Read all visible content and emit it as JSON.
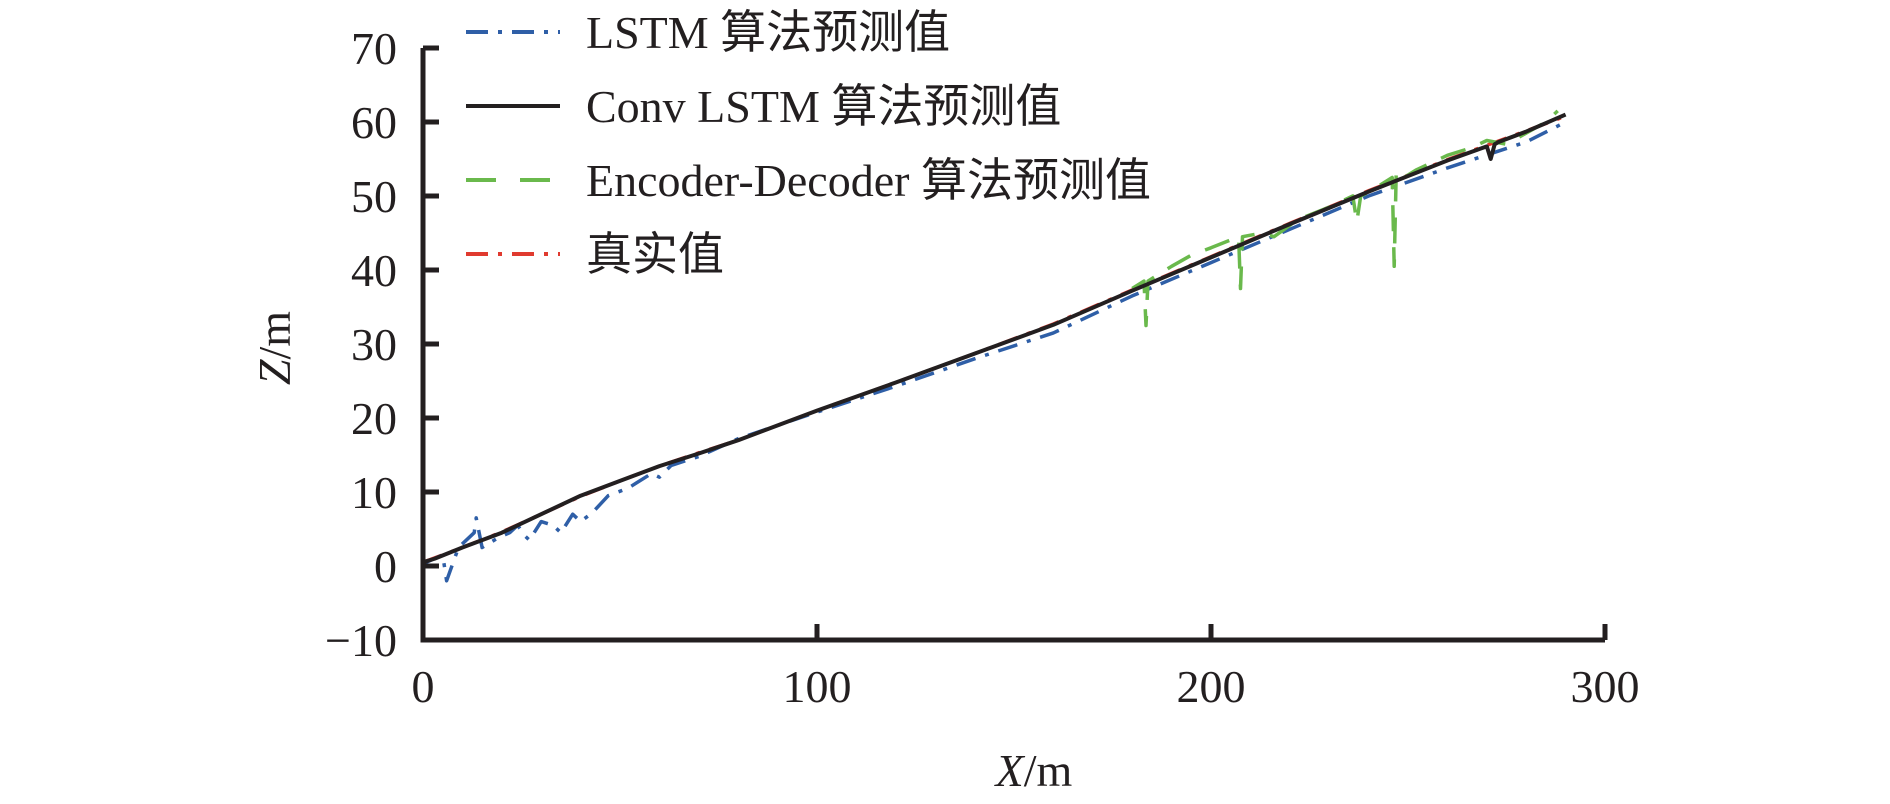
{
  "chart_data": {
    "type": "line",
    "xlabel": "X/m",
    "ylabel": "Z/m",
    "xlim": [
      0,
      300
    ],
    "ylim": [
      -10,
      70
    ],
    "x_ticks": [
      0,
      100,
      200,
      300
    ],
    "y_ticks": [
      -10,
      0,
      10,
      20,
      30,
      40,
      50,
      60,
      70
    ],
    "legend_position": "top-left",
    "grid": false,
    "series": [
      {
        "name": "LSTM 算法预测值",
        "color": "#2f5fa7",
        "dash": "dashdot",
        "x": [
          0,
          5,
          6,
          9,
          13,
          13.5,
          15,
          19,
          22,
          24,
          26,
          27,
          30,
          33,
          35,
          38,
          40,
          43,
          47,
          52,
          58,
          60,
          63,
          70,
          80,
          100,
          120,
          140,
          160,
          180,
          200,
          220,
          240,
          260,
          280,
          290
        ],
        "y": [
          0.3,
          1.5,
          -2,
          2.5,
          4.5,
          6.5,
          2.5,
          3.8,
          4.5,
          5.5,
          4,
          3.5,
          6,
          5.5,
          4.5,
          7,
          6,
          7.2,
          9.5,
          10.5,
          12.5,
          12,
          13.6,
          14.8,
          17.2,
          20.8,
          24.3,
          28,
          31.5,
          36.5,
          41,
          45.5,
          50,
          53.8,
          57.3,
          60
        ]
      },
      {
        "name": "Conv LSTM 算法预测值",
        "color": "#231f20",
        "dash": "solid",
        "x": [
          0,
          3,
          10,
          20,
          30,
          40,
          50,
          60,
          70,
          80,
          100,
          120,
          140,
          160,
          180,
          200,
          220,
          240,
          260,
          270,
          271,
          272,
          273,
          280,
          290
        ],
        "y": [
          0.5,
          1,
          2.5,
          4.5,
          7,
          9.5,
          11.5,
          13.5,
          15.2,
          17,
          21,
          24.8,
          28.7,
          32.6,
          37.2,
          41.7,
          46.2,
          50.6,
          54.8,
          56.7,
          55,
          57,
          57.3,
          58.7,
          61
        ]
      },
      {
        "name": "Encoder-Decoder 算法预测值",
        "color": "#6ab94c",
        "dash": "dash",
        "x": [
          180,
          183,
          183.5,
          184,
          190,
          195,
          200,
          207,
          207.5,
          208,
          213,
          216,
          222,
          230,
          236,
          237,
          238,
          240,
          246,
          246.5,
          247,
          247.5,
          252,
          260,
          266,
          270,
          275,
          280,
          285,
          288
        ],
        "y": [
          37.5,
          38.5,
          32.5,
          38.5,
          40.5,
          42,
          43,
          44.5,
          37.5,
          44.5,
          45,
          44.5,
          46.8,
          48.5,
          50,
          46.5,
          50,
          50.5,
          52.5,
          40.5,
          53,
          52,
          53.5,
          55.5,
          56.5,
          57.5,
          57,
          58.5,
          60,
          61.5
        ]
      },
      {
        "name": "真实值",
        "color": "#e03a2f",
        "dash": "dashdot",
        "x": [
          0,
          10,
          20,
          30,
          40,
          50,
          60,
          70,
          80,
          100,
          120,
          140,
          160,
          180,
          200,
          220,
          240,
          260,
          280,
          290
        ],
        "y": [
          0.5,
          2.5,
          4.6,
          7,
          9.4,
          11.5,
          13.5,
          15.3,
          17,
          21,
          24.8,
          28.7,
          32.7,
          37.3,
          41.8,
          46.3,
          50.7,
          54.9,
          58.8,
          60.8
        ]
      }
    ]
  }
}
